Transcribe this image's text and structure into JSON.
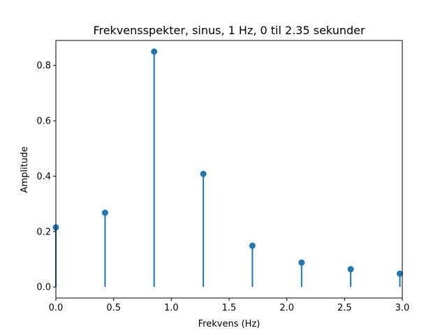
{
  "chart_data": {
    "type": "stem",
    "title": "Frekvensspekter, sinus, 1 Hz, 0 til 2.35 sekunder",
    "xlabel": "Frekvens (Hz)",
    "ylabel": "Amplitude",
    "xlim": [
      0.0,
      3.0
    ],
    "ylim": [
      -0.04,
      0.89
    ],
    "x_ticks": [
      0.0,
      0.5,
      1.0,
      1.5,
      2.0,
      2.5,
      3.0
    ],
    "x_tick_labels": [
      "0.0",
      "0.5",
      "1.0",
      "1.5",
      "2.0",
      "2.5",
      "3.0"
    ],
    "y_ticks": [
      0.0,
      0.2,
      0.4,
      0.6,
      0.8
    ],
    "y_tick_labels": [
      "0.0",
      "0.2",
      "0.4",
      "0.6",
      "0.8"
    ],
    "grid": false,
    "color": "#1f77b4",
    "x": [
      0.0,
      0.426,
      0.851,
      1.277,
      1.702,
      2.128,
      2.553,
      2.979
    ],
    "values": [
      0.215,
      0.268,
      0.85,
      0.408,
      0.149,
      0.088,
      0.064,
      0.048
    ]
  }
}
